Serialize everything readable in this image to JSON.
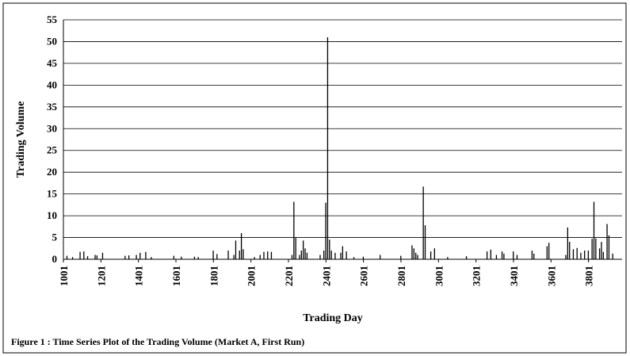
{
  "chart_data": {
    "type": "spike",
    "caption": "Figure 1 : Time Series Plot of the Trading Volume (Market A, First Run)",
    "x_label": "Trading Day",
    "y_label": "Trading Volume",
    "x": [
      1020,
      1050,
      1090,
      1110,
      1130,
      1170,
      1180,
      1210,
      1330,
      1350,
      1390,
      1410,
      1440,
      1470,
      1590,
      1630,
      1700,
      1720,
      1800,
      1820,
      1880,
      1910,
      1920,
      1940,
      1950,
      1960,
      2020,
      2050,
      2070,
      2090,
      2110,
      2220,
      2230,
      2240,
      2260,
      2270,
      2280,
      2290,
      2300,
      2370,
      2390,
      2400,
      2410,
      2420,
      2430,
      2450,
      2480,
      2490,
      2510,
      2550,
      2600,
      2690,
      2800,
      2860,
      2870,
      2880,
      2890,
      2920,
      2930,
      2960,
      2980,
      3050,
      3150,
      3260,
      3280,
      3310,
      3340,
      3350,
      3400,
      3420,
      3500,
      3510,
      3580,
      3590,
      3680,
      3690,
      3700,
      3720,
      3740,
      3760,
      3780,
      3800,
      3820,
      3830,
      3840,
      3860,
      3870,
      3880,
      3900,
      3910,
      3930
    ],
    "values": [
      0.8,
      0.5,
      1.7,
      1.8,
      0.7,
      1.0,
      0.9,
      1.5,
      0.8,
      0.9,
      1.0,
      1.5,
      1.7,
      0.5,
      0.8,
      0.6,
      0.6,
      0.5,
      2.0,
      1.2,
      2.0,
      1.0,
      4.3,
      2.0,
      6.0,
      2.3,
      0.5,
      1.0,
      1.7,
      1.8,
      1.7,
      1.0,
      13.2,
      5.0,
      1.0,
      2.0,
      4.3,
      2.5,
      1.5,
      1.0,
      2.0,
      13.0,
      51.0,
      4.5,
      2.0,
      1.5,
      1.5,
      3.0,
      1.8,
      0.5,
      0.6,
      1.0,
      0.8,
      3.2,
      2.5,
      1.5,
      1.0,
      16.7,
      7.8,
      1.8,
      2.5,
      0.5,
      0.7,
      1.8,
      2.2,
      1.0,
      1.8,
      1.3,
      1.8,
      1.0,
      2.0,
      1.3,
      3.0,
      3.8,
      1.0,
      7.3,
      4.0,
      2.3,
      2.6,
      1.5,
      2.0,
      2.0,
      4.7,
      13.2,
      4.8,
      2.5,
      4.0,
      1.7,
      8.1,
      5.5,
      1.3
    ],
    "color": "#000000",
    "xlim": [
      1001,
      3980
    ],
    "xticks": [
      1001,
      1201,
      1401,
      1601,
      1801,
      2001,
      2201,
      2401,
      2601,
      2801,
      3001,
      3201,
      3401,
      3601,
      3801
    ],
    "ylim": [
      0,
      55
    ],
    "yticks": [
      0,
      5,
      10,
      15,
      20,
      25,
      30,
      35,
      40,
      45,
      50,
      55
    ],
    "grid": true
  }
}
